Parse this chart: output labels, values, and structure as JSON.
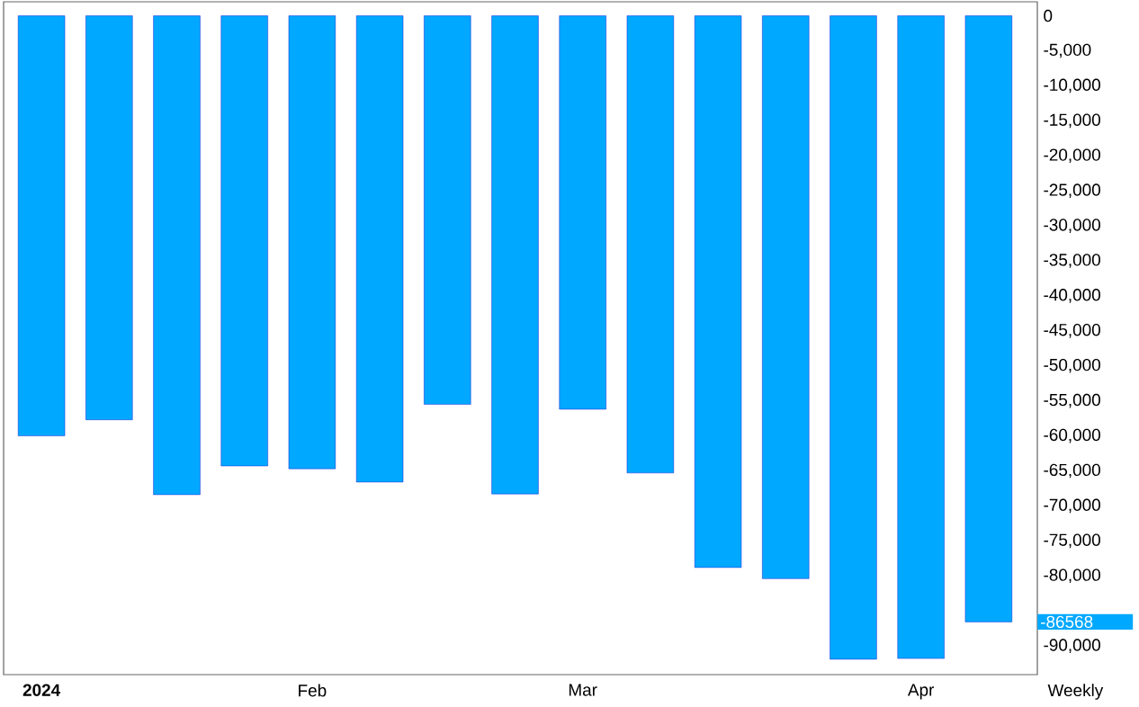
{
  "chart_data": {
    "type": "bar",
    "categories": [
      "2024",
      null,
      null,
      null,
      "Feb",
      null,
      null,
      null,
      "Mar",
      null,
      null,
      null,
      null,
      "Apr",
      null
    ],
    "values": [
      -60000,
      -57700,
      -68400,
      -64300,
      -64700,
      -66600,
      -55500,
      -68300,
      -56200,
      -65300,
      -78800,
      -80400,
      -91900,
      -91800,
      -86568
    ],
    "color": "#00a8ff",
    "ylim": [
      -94100,
      2000
    ],
    "yticks": [
      0,
      {
        "value": -5000,
        "label": "-5,000"
      },
      {
        "value": -10000,
        "label": "-10,000"
      },
      {
        "value": -15000,
        "label": "-15,000"
      },
      {
        "value": -20000,
        "label": "-20,000"
      },
      {
        "value": -25000,
        "label": "-25,000"
      },
      {
        "value": -30000,
        "label": "-30,000"
      },
      {
        "value": -35000,
        "label": "-35,000"
      },
      {
        "value": -40000,
        "label": "-40,000"
      },
      {
        "value": -45000,
        "label": "-45,000"
      },
      {
        "value": -50000,
        "label": "-50,000"
      },
      {
        "value": -55000,
        "label": "-55,000"
      },
      {
        "value": -60000,
        "label": "-60,000"
      },
      {
        "value": -65000,
        "label": "-65,000"
      },
      {
        "value": -70000,
        "label": "-70,000"
      },
      {
        "value": -75000,
        "label": "-75,000"
      },
      {
        "value": -80000,
        "label": "-80,000"
      },
      {
        "value": -90000,
        "label": "-90,000"
      }
    ],
    "annotations": [
      "-86568",
      "Weekly"
    ]
  }
}
